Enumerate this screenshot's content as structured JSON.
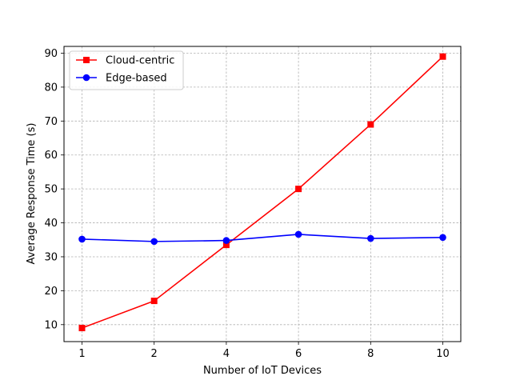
{
  "chart_data": {
    "type": "line",
    "title": "",
    "xlabel": "Number of IoT Devices",
    "ylabel": "Average Response Time (s)",
    "categories": [
      "1",
      "2",
      "4",
      "6",
      "8",
      "10"
    ],
    "ylim": [
      5,
      92
    ],
    "yticks": [
      10,
      20,
      30,
      40,
      50,
      60,
      70,
      80,
      90
    ],
    "grid": true,
    "legend_position": "upper-left",
    "series": [
      {
        "name": "Cloud-centric",
        "color": "#ff0000",
        "marker": "square",
        "values": [
          9,
          17,
          33.5,
          50,
          69,
          89
        ]
      },
      {
        "name": "Edge-based",
        "color": "#0000ff",
        "marker": "circle",
        "values": [
          35.2,
          34.5,
          34.8,
          36.6,
          35.4,
          35.7
        ]
      }
    ]
  }
}
